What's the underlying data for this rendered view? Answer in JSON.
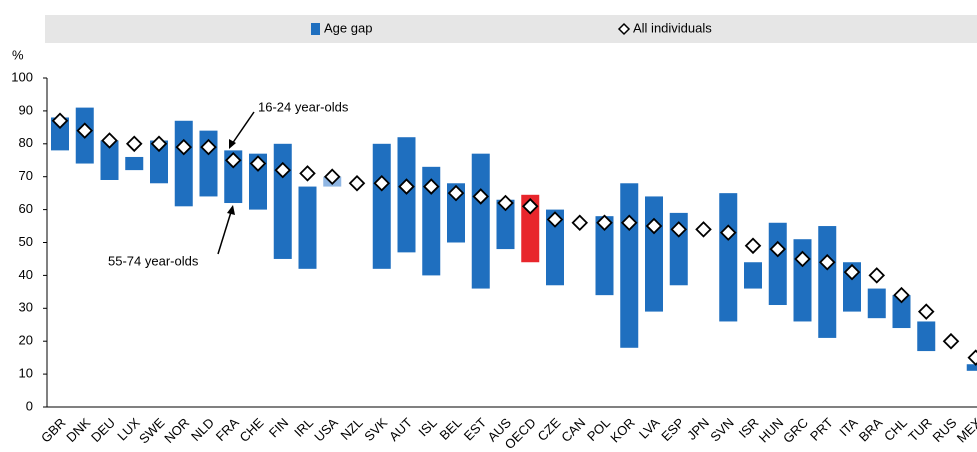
{
  "chart_data": {
    "type": "range-bar",
    "y_label": "%",
    "ylim": [
      0,
      100
    ],
    "yticks": [
      0,
      10,
      20,
      30,
      40,
      50,
      60,
      70,
      80,
      90,
      100
    ],
    "categories": [
      "GBR",
      "DNK",
      "DEU",
      "LUX",
      "SWE",
      "NOR",
      "NLD",
      "FRA",
      "CHE",
      "FIN",
      "IRL",
      "USA",
      "NZL",
      "SVK",
      "AUT",
      "ISL",
      "BEL",
      "EST",
      "AUS",
      "OECD",
      "CZE",
      "CAN",
      "POL",
      "KOR",
      "LVA",
      "ESP",
      "JPN",
      "SVN",
      "ISR",
      "HUN",
      "GRC",
      "PRT",
      "ITA",
      "BRA",
      "CHL",
      "TUR",
      "RUS",
      "MEX"
    ],
    "series": [
      {
        "name": "Age gap",
        "color": "#1f6fbf",
        "bar_colors": [
          "#1f6fbf",
          "#1f6fbf",
          "#1f6fbf",
          "#1f6fbf",
          "#1f6fbf",
          "#1f6fbf",
          "#1f6fbf",
          "#1f6fbf",
          "#1f6fbf",
          "#1f6fbf",
          "#1f6fbf",
          "#8fb6e3",
          "#1f6fbf",
          "#1f6fbf",
          "#1f6fbf",
          "#1f6fbf",
          "#1f6fbf",
          "#1f6fbf",
          "#1f6fbf",
          "#e8262c",
          "#1f6fbf",
          "#1f6fbf",
          "#1f6fbf",
          "#1f6fbf",
          "#1f6fbf",
          "#1f6fbf",
          "#1f6fbf",
          "#1f6fbf",
          "#1f6fbf",
          "#1f6fbf",
          "#1f6fbf",
          "#1f6fbf",
          "#1f6fbf",
          "#1f6fbf",
          "#1f6fbf",
          "#1f6fbf",
          "#1f6fbf",
          "#1f6fbf"
        ],
        "low": [
          78,
          74,
          69,
          72,
          68,
          61,
          64,
          62,
          60,
          45,
          42,
          67,
          null,
          42,
          47,
          40,
          50,
          36,
          48,
          44,
          37,
          null,
          34,
          18,
          29,
          37,
          null,
          26,
          36,
          31,
          26,
          21,
          29,
          27,
          24,
          17,
          null,
          11
        ],
        "high": [
          88,
          91,
          81,
          76,
          81,
          87,
          84,
          78,
          77,
          80,
          67,
          70,
          null,
          80,
          82,
          73,
          68,
          77,
          63,
          64.5,
          60,
          null,
          58,
          68,
          64,
          59,
          null,
          65,
          44,
          56,
          51,
          55,
          44,
          36,
          34,
          26,
          null,
          13
        ]
      },
      {
        "name": "All individuals",
        "color": "#ffffff",
        "values": [
          87,
          84,
          81,
          80,
          80,
          79,
          79,
          75,
          74,
          72,
          71,
          70,
          68,
          68,
          67,
          67,
          65,
          64,
          62,
          61,
          57,
          56,
          56,
          56,
          55,
          54,
          54,
          53,
          49,
          48,
          45,
          44,
          41,
          40,
          34,
          29,
          20,
          15
        ]
      }
    ],
    "annotations": [
      "16-24 year-olds",
      "55-74 year-olds"
    ]
  }
}
